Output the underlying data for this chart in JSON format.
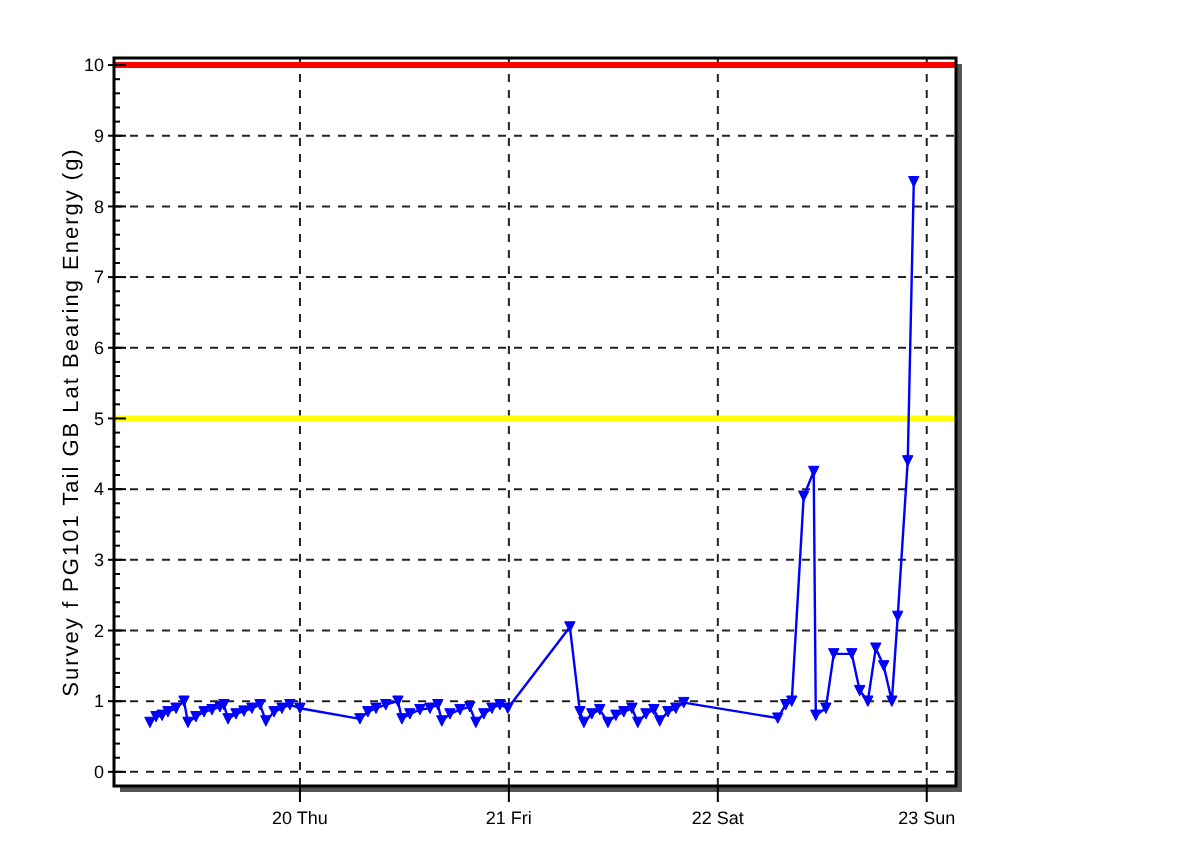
{
  "chart_data": {
    "type": "line",
    "ylabel": "Survey f PG101 Tail GB Lat Bearing Energy (g)",
    "xlim": [
      19.11,
      23.14
    ],
    "ylim": [
      -0.2,
      10.1
    ],
    "xticks": [
      {
        "value": 20,
        "label": "20 Thu"
      },
      {
        "value": 21,
        "label": "21 Fri"
      },
      {
        "value": 22,
        "label": "22 Sat"
      },
      {
        "value": 23,
        "label": "23 Sun"
      }
    ],
    "yticks": [
      0,
      1,
      2,
      3,
      4,
      5,
      6,
      7,
      8,
      9,
      10
    ],
    "grid": true,
    "marker": "triangle",
    "line_style": "solid",
    "ref_lines": [
      {
        "axis": "y",
        "value": 10,
        "color": "#ff0000"
      },
      {
        "axis": "y",
        "value": 5,
        "color": "#ffff00"
      }
    ],
    "series": [
      {
        "color": "#0000ff",
        "x": [
          19.282,
          19.311,
          19.34,
          19.368,
          19.407,
          19.445,
          19.464,
          19.502,
          19.541,
          19.579,
          19.617,
          19.636,
          19.656,
          19.694,
          19.732,
          19.77,
          19.809,
          19.837,
          19.876,
          19.914,
          19.952,
          20.0,
          20.287,
          20.325,
          20.364,
          20.411,
          20.469,
          20.488,
          20.526,
          20.574,
          20.622,
          20.66,
          20.679,
          20.718,
          20.766,
          20.813,
          20.842,
          20.88,
          20.919,
          20.957,
          20.995,
          21.292,
          21.34,
          21.359,
          21.397,
          21.435,
          21.474,
          21.512,
          21.55,
          21.589,
          21.617,
          21.656,
          21.694,
          21.722,
          21.761,
          21.799,
          21.837,
          22.287,
          22.325,
          22.354,
          22.411,
          22.459,
          22.469,
          22.517,
          22.555,
          22.641,
          22.679,
          22.718,
          22.756,
          22.794,
          22.833,
          22.861,
          22.909,
          22.938
        ],
        "values": [
          0.7,
          0.78,
          0.8,
          0.85,
          0.9,
          1.0,
          0.7,
          0.78,
          0.85,
          0.88,
          0.92,
          0.95,
          0.75,
          0.82,
          0.86,
          0.9,
          0.95,
          0.72,
          0.85,
          0.9,
          0.95,
          0.9,
          0.75,
          0.85,
          0.9,
          0.95,
          1.0,
          0.75,
          0.82,
          0.88,
          0.9,
          0.95,
          0.72,
          0.82,
          0.88,
          0.92,
          0.7,
          0.82,
          0.9,
          0.95,
          0.9,
          2.05,
          0.85,
          0.7,
          0.82,
          0.88,
          0.7,
          0.8,
          0.85,
          0.9,
          0.7,
          0.82,
          0.88,
          0.72,
          0.85,
          0.9,
          0.98,
          0.76,
          0.95,
          1.0,
          3.9,
          4.25,
          0.8,
          0.9,
          1.67,
          1.67,
          1.15,
          1.0,
          1.75,
          1.5,
          1.0,
          2.2,
          4.4,
          8.35
        ]
      }
    ]
  }
}
